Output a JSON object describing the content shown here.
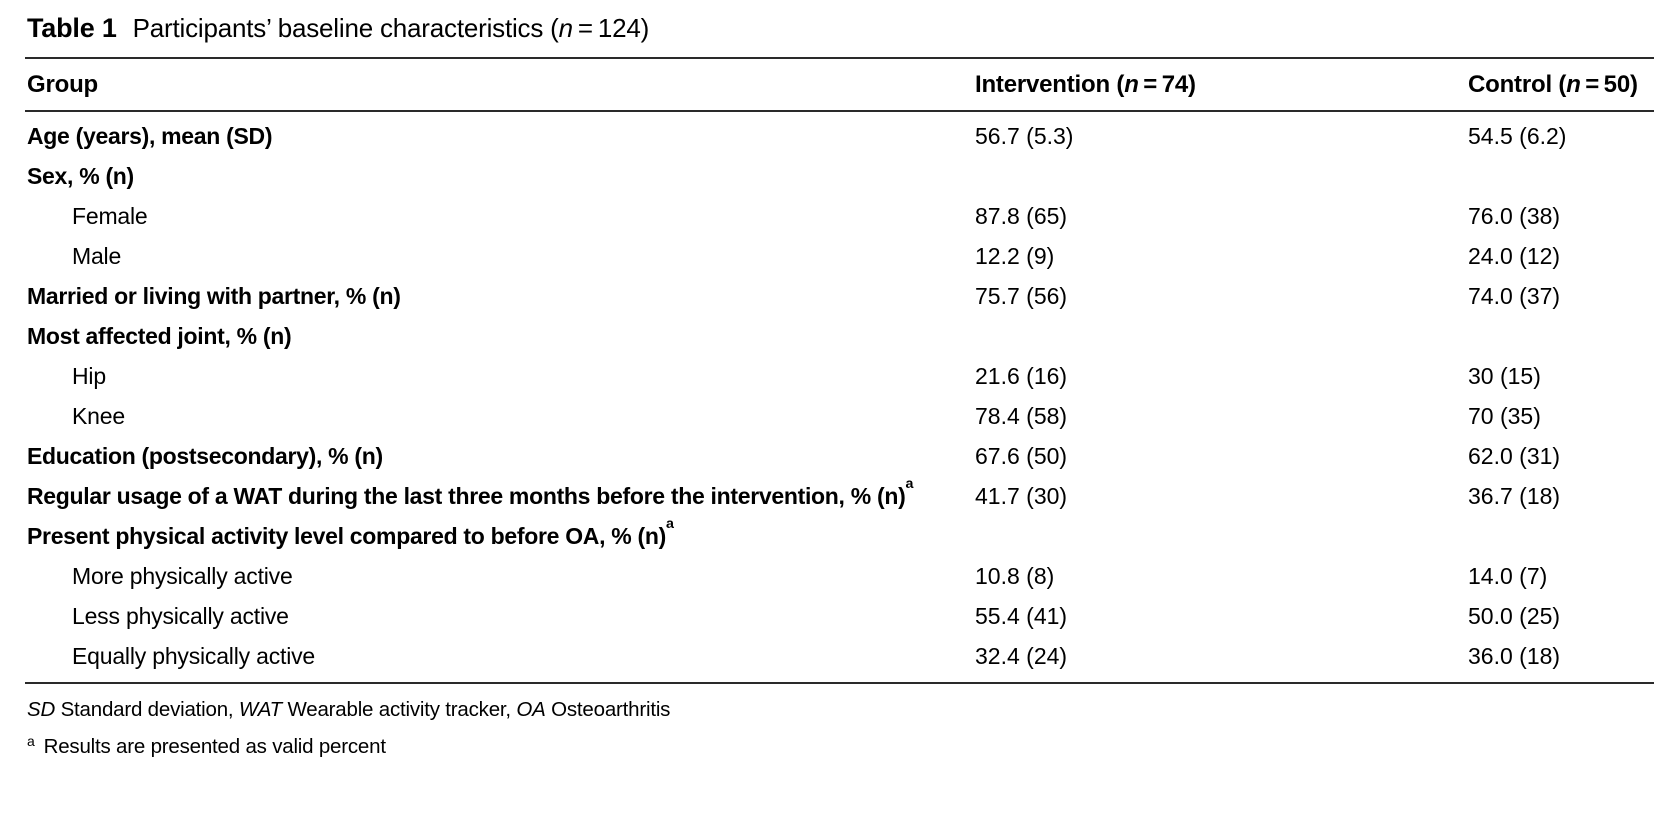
{
  "title": {
    "label": "Table 1",
    "caption_part1": "Participants’ baseline characteristics (",
    "caption_n": "n",
    "caption_part2": " = 124)"
  },
  "table": {
    "headers": {
      "group": "Group",
      "intervention_part1": "Intervention (",
      "intervention_n": "n",
      "intervention_part2": " = 74)",
      "control_part1": "Control (",
      "control_n": "n",
      "control_part2": " = 50)"
    },
    "rows": [
      {
        "label": "Age (years), mean (SD)",
        "sup": "",
        "intervention": "56.7 (5.3)",
        "control": "54.5 (6.2)"
      },
      {
        "label": "Sex, % (n)",
        "sup": "",
        "intervention": "",
        "control": ""
      },
      {
        "label": "Female",
        "sup": "",
        "intervention": "87.8 (65)",
        "control": "76.0 (38)"
      },
      {
        "label": "Male",
        "sup": "",
        "intervention": "12.2 (9)",
        "control": "24.0 (12)"
      },
      {
        "label": "Married or living with partner, % (n)",
        "sup": "",
        "intervention": "75.7 (56)",
        "control": "74.0 (37)"
      },
      {
        "label": "Most affected joint, % (n)",
        "sup": "",
        "intervention": "",
        "control": ""
      },
      {
        "label": "Hip",
        "sup": "",
        "intervention": "21.6 (16)",
        "control": "30 (15)"
      },
      {
        "label": "Knee",
        "sup": "",
        "intervention": "78.4 (58)",
        "control": "70 (35)"
      },
      {
        "label": "Education (postsecondary), % (n)",
        "sup": "",
        "intervention": "67.6 (50)",
        "control": "62.0 (31)"
      },
      {
        "label": "Regular usage of a WAT during the last three months before the intervention, % (n)",
        "sup": "a",
        "intervention": "41.7 (30)",
        "control": "36.7 (18)"
      },
      {
        "label": "Present physical activity level compared to before OA, % (n)",
        "sup": "a",
        "intervention": "",
        "control": ""
      },
      {
        "label": "More physically active",
        "sup": "",
        "intervention": "10.8 (8)",
        "control": "14.0 (7)"
      },
      {
        "label": "Less physically active",
        "sup": "",
        "intervention": "55.4 (41)",
        "control": "50.0 (25)"
      },
      {
        "label": "Equally physically active",
        "sup": "",
        "intervention": "32.4 (24)",
        "control": "36.0 (18)"
      }
    ]
  },
  "footnotes": {
    "abbreviations": {
      "sd_abbr": "SD",
      "sd_text": " Standard deviation, ",
      "wat_abbr": "WAT",
      "wat_text": " Wearable activity tracker, ",
      "oa_abbr": "OA",
      "oa_text": " Osteoarthritis"
    },
    "note_a": {
      "marker": "a",
      "text": "Results are presented as valid percent"
    }
  },
  "colors": {
    "background": "#ffffff",
    "text": "#000000",
    "rule": "#2a2a2a"
  }
}
